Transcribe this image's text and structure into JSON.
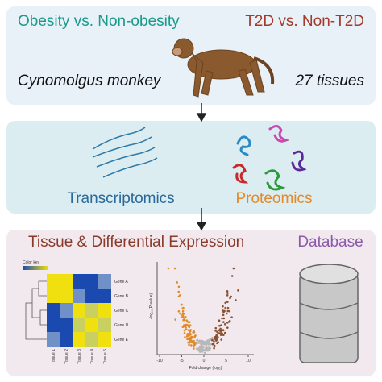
{
  "top": {
    "left_title": "Obesity vs. Non-obesity",
    "right_title": "T2D vs. Non-T2D",
    "species": "Cynomolgus monkey",
    "tissues": "27 tissues"
  },
  "middle": {
    "left_label": "Transcriptomics",
    "right_label": "Proteomics"
  },
  "bottom": {
    "left_title": "Tissue & Differential Expression",
    "right_title": "Database",
    "heatmap": {
      "color_key": "Color key",
      "genes": [
        "Gene A",
        "Gene B",
        "Gene C",
        "Gene D",
        "Gene E"
      ],
      "tissues": [
        "Tissue 1",
        "Tissue 2",
        "Tissue 3",
        "Tissue 4",
        "Tissue 5"
      ]
    },
    "volcano": {
      "y_label": "-log₁₀(P-value)",
      "x_label": "Fold change (log₂)",
      "xticks": [
        -10,
        -5,
        0,
        5,
        10
      ]
    }
  }
}
